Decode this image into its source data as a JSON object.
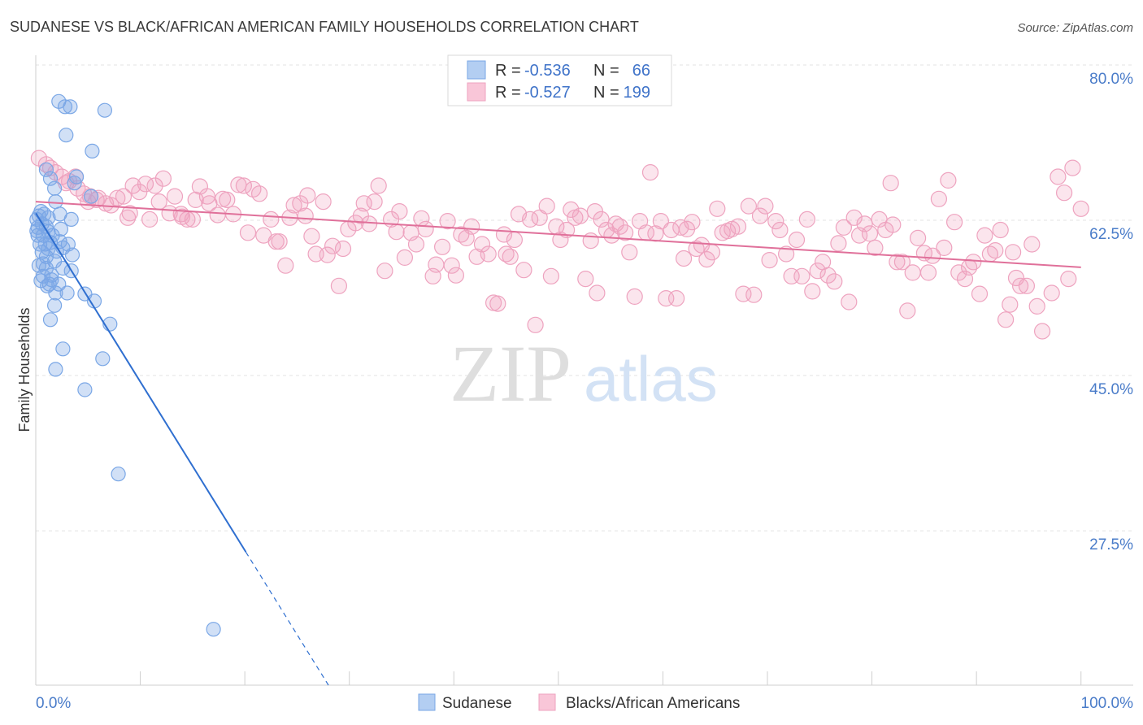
{
  "source": "Source: ZipAtlas.com",
  "watermark": {
    "zip": "ZIP",
    "atlas": "atlas"
  },
  "legend": {
    "rows": [
      {
        "r_label": "R =",
        "r_value": "-0.536",
        "n_label": "N =",
        "n_value": "66"
      },
      {
        "r_label": "R =",
        "r_value": "-0.527",
        "n_label": "N =",
        "n_value": "199"
      }
    ]
  },
  "colors": {
    "blue_fill": "rgba(122,166,230,0.35)",
    "blue_stroke": "#7aa7e6",
    "blue_line": "#2f6fd0",
    "blue_swatch": "#b3cef2",
    "pink_fill": "rgba(242,160,190,0.28)",
    "pink_stroke": "#eea3bf",
    "pink_line": "#e0709a",
    "pink_swatch": "#f9c6d8"
  },
  "chart_data": {
    "type": "scatter",
    "title": "SUDANESE VS BLACK/AFRICAN AMERICAN FAMILY HOUSEHOLDS CORRELATION CHART",
    "xlabel": "",
    "ylabel": "Family Households",
    "xlim": [
      0,
      105
    ],
    "ylim": [
      10.1,
      81.1
    ],
    "x_ticks": [
      0,
      10,
      20,
      30,
      40,
      50,
      60,
      70,
      80,
      90,
      100
    ],
    "x_tick_labels": [
      "0.0%",
      "100.0%"
    ],
    "y_ticks": [
      80,
      62.5,
      45,
      27.5
    ],
    "y_tick_labels": [
      "80.0%",
      "62.5%",
      "45.0%",
      "27.5%"
    ],
    "grid": true,
    "legend_position": "top-center",
    "series": [
      {
        "name": "Sudanese",
        "R": -0.536,
        "N": 66,
        "trend": {
          "x_start": 0,
          "y_start": 63.3,
          "x_end": 28,
          "y_end": 10.1,
          "solid_until_x": 20.1
        },
        "points": [
          [
            2.2,
            75.9
          ],
          [
            3.3,
            75.3
          ],
          [
            2.8,
            75.3
          ],
          [
            6.6,
            74.9
          ],
          [
            2.9,
            72.1
          ],
          [
            5.4,
            70.3
          ],
          [
            1.0,
            68.2
          ],
          [
            3.9,
            67.4
          ],
          [
            1.4,
            67.2
          ],
          [
            3.7,
            66.7
          ],
          [
            1.8,
            66.1
          ],
          [
            5.3,
            65.2
          ],
          [
            1.9,
            64.6
          ],
          [
            2.3,
            63.2
          ],
          [
            3.4,
            62.6
          ],
          [
            0.3,
            63.0
          ],
          [
            0.6,
            62.1
          ],
          [
            0.2,
            61.7
          ],
          [
            1.0,
            61.8
          ],
          [
            0.2,
            60.8
          ],
          [
            1.2,
            61.2
          ],
          [
            0.7,
            60.8
          ],
          [
            1.4,
            60.0
          ],
          [
            2.3,
            60.1
          ],
          [
            3.1,
            59.8
          ],
          [
            2.6,
            59.4
          ],
          [
            3.5,
            58.6
          ],
          [
            1.0,
            58.4
          ],
          [
            1.8,
            57.9
          ],
          [
            0.7,
            57.6
          ],
          [
            1.0,
            57.1
          ],
          [
            2.6,
            57.1
          ],
          [
            3.4,
            56.8
          ],
          [
            1.5,
            56.3
          ],
          [
            0.5,
            55.7
          ],
          [
            1.3,
            55.3
          ],
          [
            2.2,
            55.3
          ],
          [
            1.1,
            55.1
          ],
          [
            1.9,
            54.3
          ],
          [
            3.0,
            54.3
          ],
          [
            4.7,
            54.2
          ],
          [
            5.6,
            53.4
          ],
          [
            1.8,
            52.9
          ],
          [
            1.4,
            51.3
          ],
          [
            7.1,
            50.8
          ],
          [
            2.6,
            48.0
          ],
          [
            6.4,
            46.9
          ],
          [
            1.9,
            45.7
          ],
          [
            4.7,
            43.4
          ],
          [
            7.9,
            33.9
          ],
          [
            17.0,
            16.4
          ],
          [
            0.1,
            61.3
          ],
          [
            0.4,
            59.8
          ],
          [
            0.6,
            58.9
          ],
          [
            0.9,
            59.8
          ],
          [
            0.3,
            57.4
          ],
          [
            1.2,
            62.8
          ],
          [
            0.5,
            63.5
          ],
          [
            2.0,
            59.0
          ],
          [
            1.6,
            60.8
          ],
          [
            0.1,
            62.6
          ],
          [
            0.8,
            63.2
          ],
          [
            2.4,
            61.5
          ],
          [
            1.2,
            59.3
          ],
          [
            1.5,
            55.8
          ],
          [
            0.7,
            56.2
          ]
        ]
      },
      {
        "name": "Blacks/African Americans",
        "R": -0.527,
        "N": 199,
        "trend": {
          "x_start": 0,
          "y_start": 64.6,
          "x_end": 100,
          "y_end": 57.2,
          "solid_until_x": 100
        },
        "points": [
          [
            0.3,
            69.5
          ],
          [
            1.0,
            68.8
          ],
          [
            1.4,
            68.4
          ],
          [
            1.9,
            67.9
          ],
          [
            2.5,
            67.4
          ],
          [
            3.8,
            67.4
          ],
          [
            2.9,
            66.7
          ],
          [
            4.0,
            66.1
          ],
          [
            4.6,
            65.5
          ],
          [
            5.2,
            65.2
          ],
          [
            6.0,
            65.0
          ],
          [
            5.0,
            64.6
          ],
          [
            6.7,
            64.4
          ],
          [
            5.8,
            64.8
          ],
          [
            7.2,
            64.2
          ],
          [
            8.4,
            65.2
          ],
          [
            9.0,
            63.3
          ],
          [
            8.8,
            62.8
          ],
          [
            9.3,
            66.4
          ],
          [
            9.9,
            65.7
          ],
          [
            10.5,
            66.6
          ],
          [
            11.4,
            66.4
          ],
          [
            12.2,
            67.2
          ],
          [
            11.8,
            64.6
          ],
          [
            10.9,
            62.6
          ],
          [
            12.8,
            63.3
          ],
          [
            13.3,
            65.2
          ],
          [
            13.9,
            63.2
          ],
          [
            14.5,
            62.6
          ],
          [
            15.0,
            62.6
          ],
          [
            15.7,
            66.3
          ],
          [
            15.3,
            64.8
          ],
          [
            16.4,
            65.2
          ],
          [
            16.6,
            64.4
          ],
          [
            17.4,
            63.1
          ],
          [
            17.9,
            64.9
          ],
          [
            18.3,
            64.8
          ],
          [
            18.9,
            63.2
          ],
          [
            19.4,
            66.5
          ],
          [
            19.9,
            66.4
          ],
          [
            21.4,
            65.5
          ],
          [
            20.3,
            61.1
          ],
          [
            21.8,
            60.8
          ],
          [
            22.5,
            62.6
          ],
          [
            23.0,
            60.1
          ],
          [
            23.3,
            60.1
          ],
          [
            23.9,
            57.4
          ],
          [
            24.3,
            62.8
          ],
          [
            24.7,
            64.2
          ],
          [
            25.3,
            64.4
          ],
          [
            25.8,
            63.0
          ],
          [
            26.4,
            60.7
          ],
          [
            26.8,
            58.7
          ],
          [
            27.5,
            64.6
          ],
          [
            27.9,
            58.6
          ],
          [
            28.4,
            59.6
          ],
          [
            29.0,
            55.1
          ],
          [
            29.4,
            59.3
          ],
          [
            29.9,
            61.5
          ],
          [
            30.6,
            62.2
          ],
          [
            31.1,
            63.0
          ],
          [
            31.4,
            64.4
          ],
          [
            31.9,
            62.1
          ],
          [
            32.4,
            64.6
          ],
          [
            32.8,
            66.4
          ],
          [
            33.4,
            56.8
          ],
          [
            34.0,
            62.6
          ],
          [
            34.5,
            61.2
          ],
          [
            34.8,
            63.5
          ],
          [
            35.3,
            58.3
          ],
          [
            35.9,
            61.1
          ],
          [
            36.4,
            59.8
          ],
          [
            36.9,
            62.7
          ],
          [
            37.3,
            61.5
          ],
          [
            38.0,
            56.2
          ],
          [
            38.3,
            57.5
          ],
          [
            38.9,
            59.5
          ],
          [
            39.4,
            62.4
          ],
          [
            39.8,
            57.4
          ],
          [
            40.2,
            56.3
          ],
          [
            40.7,
            60.9
          ],
          [
            41.2,
            60.5
          ],
          [
            41.7,
            61.8
          ],
          [
            42.2,
            58.4
          ],
          [
            42.7,
            59.8
          ],
          [
            43.3,
            58.7
          ],
          [
            43.8,
            53.2
          ],
          [
            44.2,
            53.1
          ],
          [
            45.0,
            58.7
          ],
          [
            45.4,
            58.4
          ],
          [
            45.8,
            60.3
          ],
          [
            46.2,
            63.2
          ],
          [
            46.7,
            56.9
          ],
          [
            47.3,
            62.6
          ],
          [
            47.8,
            50.7
          ],
          [
            48.2,
            62.8
          ],
          [
            48.9,
            64.1
          ],
          [
            49.3,
            56.2
          ],
          [
            49.8,
            61.8
          ],
          [
            50.2,
            60.3
          ],
          [
            50.8,
            61.4
          ],
          [
            51.2,
            63.7
          ],
          [
            51.6,
            62.8
          ],
          [
            52.1,
            63.0
          ],
          [
            52.6,
            55.9
          ],
          [
            53.1,
            60.2
          ],
          [
            53.7,
            54.3
          ],
          [
            54.1,
            62.6
          ],
          [
            54.6,
            61.4
          ],
          [
            55.1,
            60.8
          ],
          [
            55.5,
            62.1
          ],
          [
            55.9,
            61.8
          ],
          [
            56.4,
            61.1
          ],
          [
            56.8,
            58.9
          ],
          [
            57.3,
            53.9
          ],
          [
            57.8,
            62.4
          ],
          [
            58.4,
            61.1
          ],
          [
            58.8,
            67.9
          ],
          [
            59.3,
            61.0
          ],
          [
            59.8,
            62.4
          ],
          [
            60.3,
            53.7
          ],
          [
            60.8,
            61.4
          ],
          [
            61.3,
            53.7
          ],
          [
            61.7,
            61.7
          ],
          [
            62.3,
            61.5
          ],
          [
            62.8,
            62.3
          ],
          [
            63.2,
            59.3
          ],
          [
            63.7,
            59.7
          ],
          [
            64.2,
            58.1
          ],
          [
            64.7,
            58.9
          ],
          [
            65.2,
            63.8
          ],
          [
            65.7,
            61.1
          ],
          [
            66.2,
            61.3
          ],
          [
            66.6,
            61.5
          ],
          [
            67.2,
            61.8
          ],
          [
            67.7,
            54.2
          ],
          [
            68.2,
            64.1
          ],
          [
            68.7,
            54.1
          ],
          [
            69.3,
            63.0
          ],
          [
            69.8,
            64.1
          ],
          [
            70.2,
            58.0
          ],
          [
            70.8,
            62.4
          ],
          [
            71.2,
            61.4
          ],
          [
            71.8,
            58.7
          ],
          [
            72.3,
            56.2
          ],
          [
            72.8,
            60.3
          ],
          [
            73.3,
            56.2
          ],
          [
            73.8,
            62.6
          ],
          [
            74.3,
            54.5
          ],
          [
            74.8,
            56.8
          ],
          [
            75.3,
            57.8
          ],
          [
            75.8,
            56.3
          ],
          [
            76.4,
            55.6
          ],
          [
            76.8,
            59.9
          ],
          [
            77.3,
            61.7
          ],
          [
            77.8,
            53.3
          ],
          [
            78.3,
            62.8
          ],
          [
            78.8,
            60.8
          ],
          [
            79.3,
            62.1
          ],
          [
            79.8,
            61.0
          ],
          [
            80.3,
            59.4
          ],
          [
            80.7,
            62.6
          ],
          [
            81.3,
            61.4
          ],
          [
            81.8,
            66.7
          ],
          [
            82.4,
            57.8
          ],
          [
            82.9,
            57.8
          ],
          [
            83.4,
            52.3
          ],
          [
            83.9,
            56.6
          ],
          [
            84.4,
            60.5
          ],
          [
            85.0,
            58.8
          ],
          [
            85.4,
            56.6
          ],
          [
            85.8,
            58.5
          ],
          [
            86.4,
            64.9
          ],
          [
            86.9,
            59.4
          ],
          [
            87.3,
            67.0
          ],
          [
            87.9,
            62.3
          ],
          [
            88.3,
            56.6
          ],
          [
            88.9,
            55.9
          ],
          [
            89.3,
            57.2
          ],
          [
            89.7,
            57.8
          ],
          [
            90.3,
            54.2
          ],
          [
            90.8,
            60.8
          ],
          [
            91.3,
            58.7
          ],
          [
            91.8,
            59.1
          ],
          [
            92.3,
            61.4
          ],
          [
            92.8,
            51.3
          ],
          [
            93.2,
            53.0
          ],
          [
            93.8,
            56.0
          ],
          [
            94.2,
            55.1
          ],
          [
            94.8,
            55.1
          ],
          [
            95.3,
            59.8
          ],
          [
            95.8,
            52.8
          ],
          [
            96.3,
            50.0
          ],
          [
            97.2,
            54.3
          ],
          [
            97.8,
            67.4
          ],
          [
            98.4,
            65.6
          ],
          [
            98.8,
            55.9
          ],
          [
            99.2,
            68.4
          ],
          [
            100.0,
            63.8
          ],
          [
            3.2,
            66.9
          ],
          [
            7.8,
            65.0
          ],
          [
            14.0,
            62.9
          ],
          [
            20.8,
            66.0
          ],
          [
            26.0,
            65.3
          ],
          [
            44.8,
            60.9
          ],
          [
            53.5,
            63.5
          ],
          [
            62.0,
            58.2
          ],
          [
            82.0,
            62.0
          ],
          [
            93.5,
            58.9
          ]
        ]
      }
    ]
  }
}
